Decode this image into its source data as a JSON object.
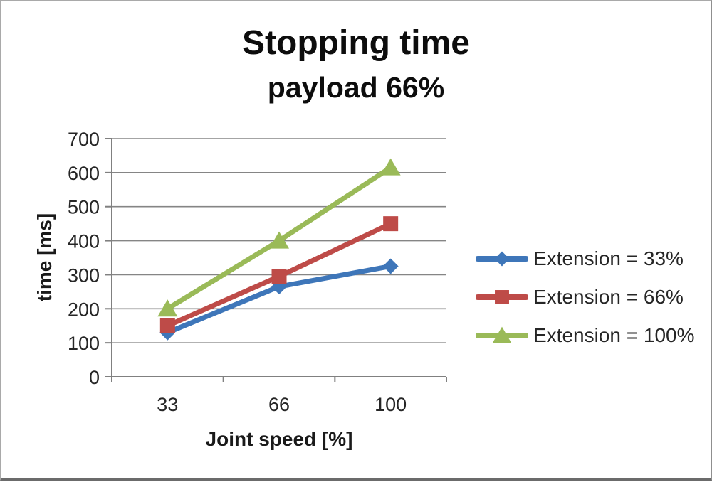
{
  "frame": {
    "background": "#ffffff",
    "border_color": "#a9a9a9"
  },
  "chart_data": {
    "type": "line",
    "title": "Stopping time",
    "subtitle": "payload 66%",
    "xlabel": "Joint speed [%]",
    "ylabel": "time [ms]",
    "categories": [
      "33",
      "66",
      "100"
    ],
    "series": [
      {
        "name": "Extension = 33%",
        "marker": "diamond",
        "color": "#3E76B9",
        "values": [
          130,
          265,
          325
        ]
      },
      {
        "name": "Extension = 66%",
        "marker": "square",
        "color": "#BE4B48",
        "values": [
          150,
          295,
          450
        ]
      },
      {
        "name": "Extension = 100%",
        "marker": "triangle",
        "color": "#9ABA58",
        "values": [
          200,
          400,
          615
        ]
      }
    ],
    "ylim": [
      0,
      700
    ],
    "yticks": [
      0,
      100,
      200,
      300,
      400,
      500,
      600,
      700
    ],
    "grid": true,
    "legend_position": "right",
    "colors": {
      "gridline": "#858585",
      "axis": "#808080",
      "tick_text": "#262626",
      "title_text": "#0d0d0d"
    }
  }
}
